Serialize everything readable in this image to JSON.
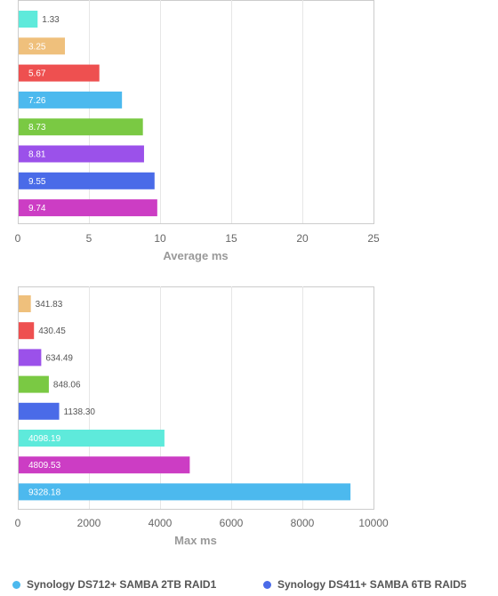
{
  "chart_data": [
    {
      "type": "bar",
      "orientation": "horizontal",
      "xlabel": "Average ms",
      "xlim": [
        0,
        25
      ],
      "ticks": [
        "0",
        "5",
        "10",
        "15",
        "20",
        "25"
      ],
      "grid": true,
      "bars": [
        {
          "value": 1.33,
          "label": "1.33",
          "color": "#5eeadb"
        },
        {
          "value": 3.25,
          "label": "3.25",
          "color": "#efc07c"
        },
        {
          "value": 5.67,
          "label": "5.67",
          "color": "#ee5050"
        },
        {
          "value": 7.26,
          "label": "7.26",
          "color": "#4cb9ee"
        },
        {
          "value": 8.73,
          "label": "8.73",
          "color": "#7ac943"
        },
        {
          "value": 8.81,
          "label": "8.81",
          "color": "#9b51ea"
        },
        {
          "value": 9.55,
          "label": "9.55",
          "color": "#4a6be8"
        },
        {
          "value": 9.74,
          "label": "9.74",
          "color": "#cc3dc4"
        }
      ]
    },
    {
      "type": "bar",
      "orientation": "horizontal",
      "xlabel": "Max ms",
      "xlim": [
        0,
        10000
      ],
      "ticks": [
        "0",
        "2000",
        "4000",
        "6000",
        "8000",
        "10000"
      ],
      "grid": true,
      "bars": [
        {
          "value": 341.83,
          "label": "341.83",
          "color": "#efc07c"
        },
        {
          "value": 430.45,
          "label": "430.45",
          "color": "#ee5050"
        },
        {
          "value": 634.49,
          "label": "634.49",
          "color": "#9b51ea"
        },
        {
          "value": 848.06,
          "label": "848.06",
          "color": "#7ac943"
        },
        {
          "value": 1138.3,
          "label": "1138.30",
          "color": "#4a6be8"
        },
        {
          "value": 4098.19,
          "label": "4098.19",
          "color": "#5eeadb"
        },
        {
          "value": 4809.53,
          "label": "4809.53",
          "color": "#cc3dc4"
        },
        {
          "value": 9328.18,
          "label": "9328.18",
          "color": "#4cb9ee"
        }
      ]
    }
  ],
  "legend": [
    {
      "label": "Synology DS712+ SAMBA 2TB RAID1",
      "color": "#4cb9ee"
    },
    {
      "label": "Synology DS411+ SAMBA 6TB RAID5",
      "color": "#4a6be8"
    }
  ]
}
